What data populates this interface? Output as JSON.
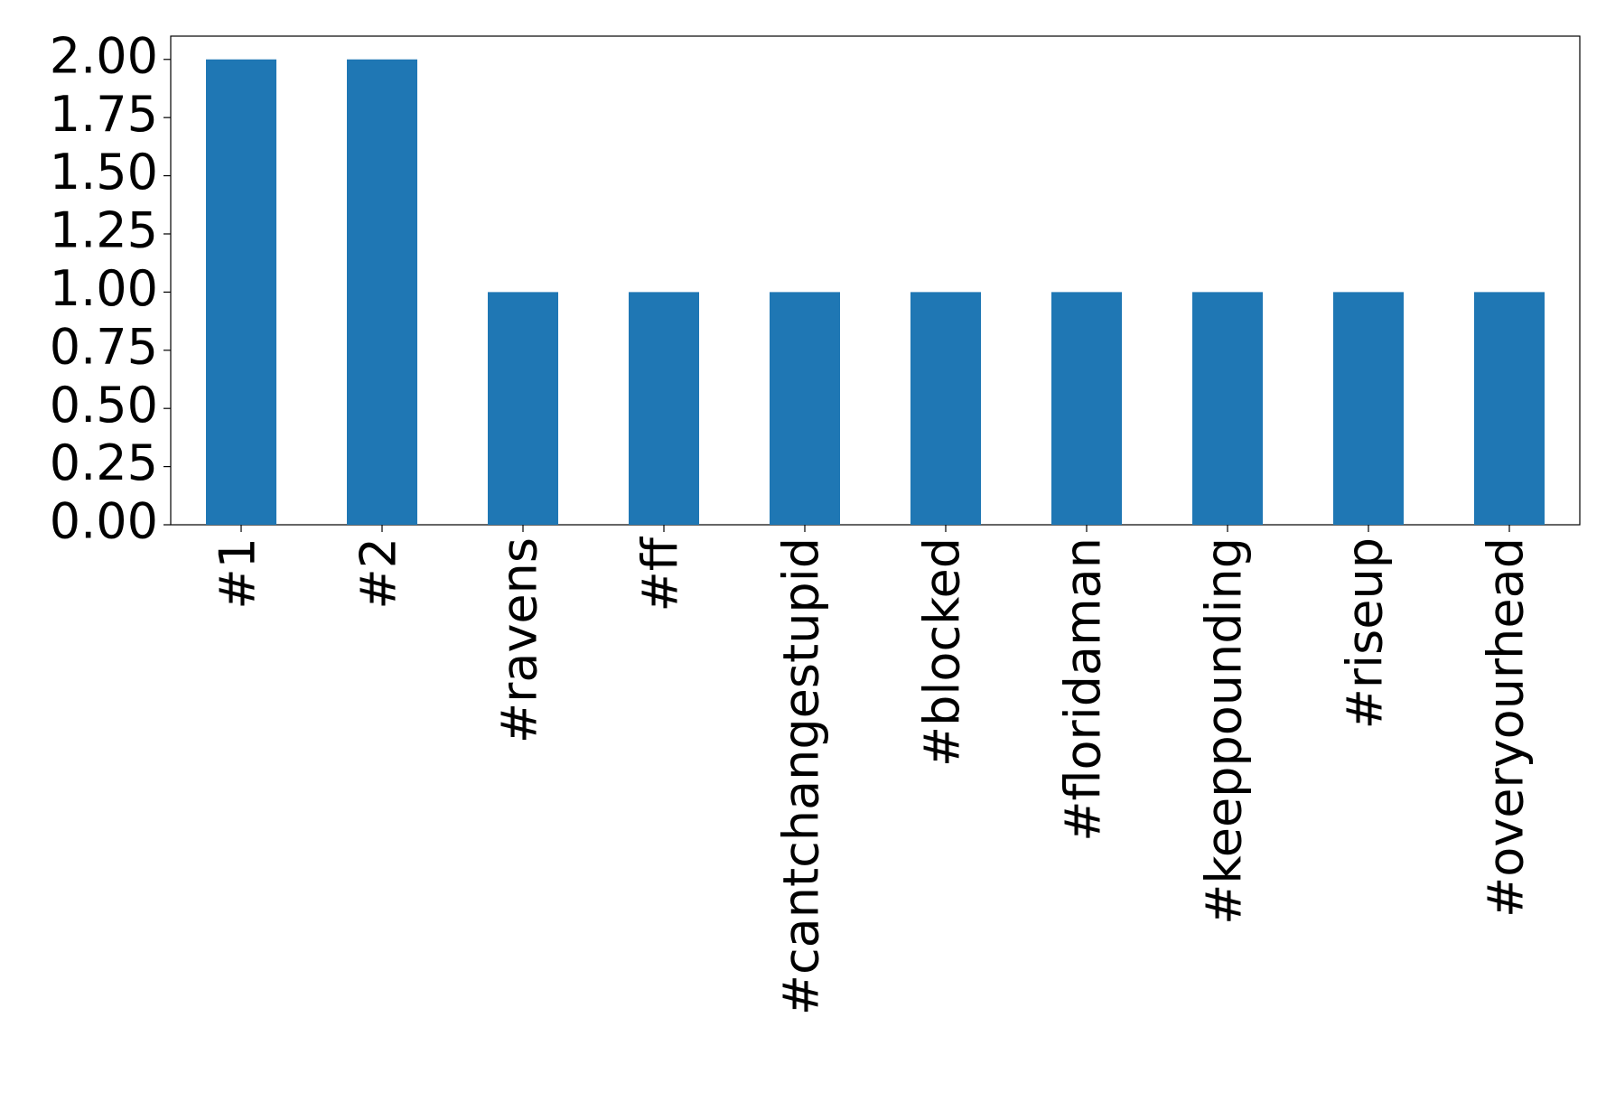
{
  "chart_data": {
    "type": "bar",
    "categories": [
      "#1",
      "#2",
      "#ravens",
      "#ff",
      "#cantchangestupid",
      "#blocked",
      "#floridaman",
      "#keeppounding",
      "#riseup",
      "#overyourhead"
    ],
    "values": [
      2,
      2,
      1,
      1,
      1,
      1,
      1,
      1,
      1,
      1
    ],
    "color": "#1f77b4",
    "ylim": [
      0,
      2.1
    ],
    "yticks": [
      {
        "value": 0,
        "label": "0.00"
      },
      0.25,
      {
        "value": 0.5,
        "label": "0.50"
      },
      0.75,
      {
        "value": 1,
        "label": "1.00"
      },
      1.25,
      {
        "value": 1.5,
        "label": "1.50"
      },
      1.75,
      {
        "value": 2,
        "label": "2.00"
      }
    ],
    "grid": false
  }
}
